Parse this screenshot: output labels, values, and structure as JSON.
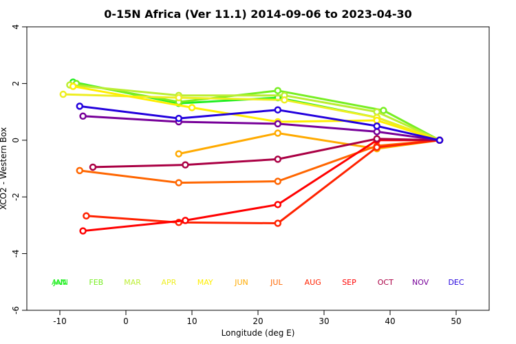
{
  "chart_data": {
    "type": "line",
    "title": "0-15N Africa (Ver 11.1)   2014-09-06 to 2023-04-30",
    "xlabel": "Longitude (deg E)",
    "ylabel": "XCO2 - Western Box",
    "xlim": [
      -15,
      55
    ],
    "ylim": [
      -6,
      4
    ],
    "x_ticks": [
      -10,
      0,
      10,
      20,
      30,
      40,
      50
    ],
    "y_ticks": [
      -6,
      -4,
      -2,
      0,
      2,
      4
    ],
    "grid": false,
    "legend": "month labels in a row near the bottom",
    "series": [
      {
        "name": "JAN",
        "color": "#22ee22",
        "x": [
          -8,
          8,
          23,
          38,
          47.5
        ],
        "y": [
          2.05,
          1.3,
          1.5,
          0.8,
          0
        ]
      },
      {
        "name": "FEB",
        "color": "#77ee22",
        "x": [
          -7.5,
          8,
          23,
          39,
          47.5
        ],
        "y": [
          2.0,
          1.35,
          1.75,
          1.05,
          0
        ]
      },
      {
        "name": "MAR",
        "color": "#bbee33",
        "x": [
          -8.5,
          8,
          24,
          38,
          47.5
        ],
        "y": [
          1.95,
          1.58,
          1.58,
          1.0,
          0
        ]
      },
      {
        "name": "APR",
        "color": "#eeee22",
        "x": [
          -9.5,
          8,
          24,
          38,
          47.5
        ],
        "y": [
          1.62,
          1.5,
          1.42,
          0.8,
          0
        ]
      },
      {
        "name": "MAY",
        "color": "#ffee00",
        "x": [
          -8,
          10,
          23,
          38,
          47.5
        ],
        "y": [
          1.9,
          1.15,
          0.65,
          0.7,
          0
        ]
      },
      {
        "name": "JUN",
        "color": "#ffaa00",
        "x": [
          8,
          23,
          38,
          47.5
        ],
        "y": [
          -0.48,
          0.25,
          -0.3,
          0
        ]
      },
      {
        "name": "JUL",
        "color": "#ff6600",
        "x": [
          -7,
          8,
          23,
          38,
          47.5
        ],
        "y": [
          -1.07,
          -1.5,
          -1.45,
          -0.2,
          0
        ]
      },
      {
        "name": "AUG",
        "color": "#ff2200",
        "x": [
          -6,
          8,
          23,
          38,
          47.5
        ],
        "y": [
          -2.67,
          -2.9,
          -2.93,
          -0.25,
          0
        ]
      },
      {
        "name": "SEP",
        "color": "#ff0000",
        "x": [
          -6.5,
          9,
          23,
          38,
          47.5
        ],
        "y": [
          -3.2,
          -2.83,
          -2.27,
          0,
          0
        ]
      },
      {
        "name": "OCT",
        "color": "#aa0044",
        "x": [
          -5,
          9,
          23,
          38,
          47.5
        ],
        "y": [
          -0.95,
          -0.87,
          -0.67,
          0.05,
          0
        ]
      },
      {
        "name": "NOV",
        "color": "#770099",
        "x": [
          -6.5,
          8,
          23,
          38,
          47.5
        ],
        "y": [
          0.85,
          0.65,
          0.58,
          0.3,
          0
        ]
      },
      {
        "name": "DEC",
        "color": "#2200dd",
        "x": [
          -7,
          8,
          23,
          38,
          47.5
        ],
        "y": [
          1.2,
          0.77,
          1.07,
          0.5,
          0
        ]
      }
    ],
    "month_labels": [
      {
        "text": "JAN",
        "color": "#00ee00",
        "x": -10
      },
      {
        "text": "ANN",
        "color": "#22ee22",
        "x": -10
      },
      {
        "text": "FEB",
        "color": "#77ee22",
        "x": -4.5
      },
      {
        "text": "MAR",
        "color": "#bbee33",
        "x": 1
      },
      {
        "text": "APR",
        "color": "#eeee22",
        "x": 6.5
      },
      {
        "text": "MAY",
        "color": "#ffee00",
        "x": 12
      },
      {
        "text": "JUN",
        "color": "#ffaa00",
        "x": 17.5
      },
      {
        "text": "JUL",
        "color": "#ff6600",
        "x": 22.8
      },
      {
        "text": "AUG",
        "color": "#ff2200",
        "x": 28.3
      },
      {
        "text": "SEP",
        "color": "#ff0000",
        "x": 33.8
      },
      {
        "text": "OCT",
        "color": "#aa0044",
        "x": 39.3
      },
      {
        "text": "NOV",
        "color": "#770099",
        "x": 44.6
      },
      {
        "text": "DEC",
        "color": "#2200dd",
        "x": 50
      }
    ],
    "month_label_y": -5
  }
}
